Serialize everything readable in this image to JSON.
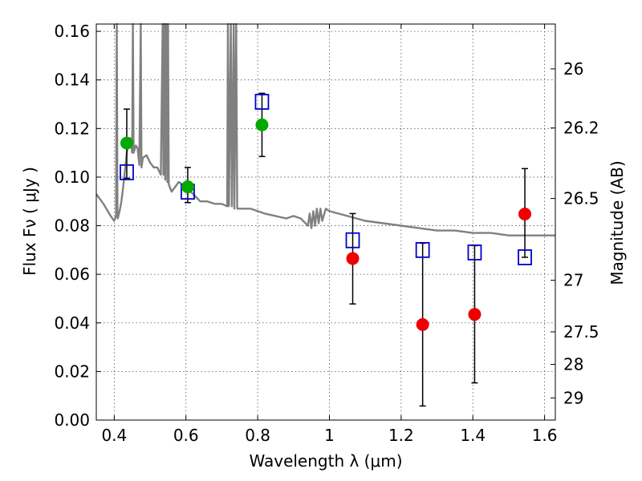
{
  "chart_data": {
    "type": "scatter",
    "xlabel": "Wavelength  λ (μm)",
    "ylabel": "Flux  Fν  ( μJy )",
    "ylabel_right": "Magnitude (AB)",
    "xlim": [
      0.35,
      1.63
    ],
    "ylim": [
      0.0,
      0.163
    ],
    "x_ticks": [
      0.4,
      0.6,
      0.8,
      1.0,
      1.2,
      1.4,
      1.6
    ],
    "x_tick_labels": [
      "0.4",
      "0.6",
      "0.8",
      "1",
      "1.2",
      "1.4",
      "1.6"
    ],
    "y_ticks": [
      0.0,
      0.02,
      0.04,
      0.06,
      0.08,
      0.1,
      0.12,
      0.14,
      0.16
    ],
    "y_tick_labels": [
      "0.00",
      "0.02",
      "0.04",
      "0.06",
      "0.08",
      "0.10",
      "0.12",
      "0.14",
      "0.16"
    ],
    "right_ticks": [
      {
        "label": "26",
        "mag": 26.0
      },
      {
        "label": "26.2",
        "mag": 26.2
      },
      {
        "label": "26.5",
        "mag": 26.5
      },
      {
        "label": "27",
        "mag": 27.0
      },
      {
        "label": "27.5",
        "mag": 27.5
      },
      {
        "label": "28",
        "mag": 28.0
      },
      {
        "label": "29",
        "mag": 29.0
      }
    ],
    "grid": true,
    "series": [
      {
        "kind": "line",
        "color": "#808080",
        "points": [
          [
            0.35,
            0.093
          ],
          [
            0.37,
            0.089
          ],
          [
            0.39,
            0.084
          ],
          [
            0.4,
            0.082
          ],
          [
            0.405,
            0.084
          ],
          [
            0.407,
            0.165
          ],
          [
            0.409,
            0.084
          ],
          [
            0.41,
            0.083
          ],
          [
            0.415,
            0.086
          ],
          [
            0.42,
            0.09
          ],
          [
            0.425,
            0.096
          ],
          [
            0.43,
            0.103
          ],
          [
            0.435,
            0.11
          ],
          [
            0.44,
            0.115
          ],
          [
            0.445,
            0.116
          ],
          [
            0.45,
            0.11
          ],
          [
            0.452,
            0.165
          ],
          [
            0.454,
            0.11
          ],
          [
            0.46,
            0.113
          ],
          [
            0.465,
            0.112
          ],
          [
            0.47,
            0.105
          ],
          [
            0.474,
            0.165
          ],
          [
            0.476,
            0.104
          ],
          [
            0.48,
            0.108
          ],
          [
            0.49,
            0.109
          ],
          [
            0.5,
            0.106
          ],
          [
            0.51,
            0.104
          ],
          [
            0.52,
            0.104
          ],
          [
            0.53,
            0.101
          ],
          [
            0.535,
            0.165
          ],
          [
            0.537,
            0.101
          ],
          [
            0.54,
            0.165
          ],
          [
            0.542,
            0.099
          ],
          [
            0.545,
            0.165
          ],
          [
            0.548,
            0.098
          ],
          [
            0.55,
            0.165
          ],
          [
            0.552,
            0.097
          ],
          [
            0.56,
            0.094
          ],
          [
            0.58,
            0.098
          ],
          [
            0.6,
            0.096
          ],
          [
            0.62,
            0.093
          ],
          [
            0.64,
            0.09
          ],
          [
            0.66,
            0.09
          ],
          [
            0.68,
            0.089
          ],
          [
            0.7,
            0.089
          ],
          [
            0.715,
            0.088
          ],
          [
            0.717,
            0.165
          ],
          [
            0.72,
            0.088
          ],
          [
            0.725,
            0.165
          ],
          [
            0.728,
            0.088
          ],
          [
            0.733,
            0.165
          ],
          [
            0.735,
            0.087
          ],
          [
            0.74,
            0.165
          ],
          [
            0.743,
            0.087
          ],
          [
            0.75,
            0.087
          ],
          [
            0.78,
            0.087
          ],
          [
            0.8,
            0.086
          ],
          [
            0.82,
            0.085
          ],
          [
            0.85,
            0.084
          ],
          [
            0.88,
            0.083
          ],
          [
            0.9,
            0.084
          ],
          [
            0.92,
            0.083
          ],
          [
            0.94,
            0.08
          ],
          [
            0.945,
            0.085
          ],
          [
            0.95,
            0.079
          ],
          [
            0.955,
            0.086
          ],
          [
            0.96,
            0.08
          ],
          [
            0.965,
            0.087
          ],
          [
            0.97,
            0.081
          ],
          [
            0.975,
            0.087
          ],
          [
            0.98,
            0.082
          ],
          [
            0.99,
            0.087
          ],
          [
            1.0,
            0.086
          ],
          [
            1.05,
            0.084
          ],
          [
            1.1,
            0.082
          ],
          [
            1.15,
            0.081
          ],
          [
            1.2,
            0.08
          ],
          [
            1.25,
            0.079
          ],
          [
            1.3,
            0.078
          ],
          [
            1.35,
            0.078
          ],
          [
            1.4,
            0.077
          ],
          [
            1.45,
            0.077
          ],
          [
            1.5,
            0.076
          ],
          [
            1.55,
            0.076
          ],
          [
            1.6,
            0.076
          ],
          [
            1.63,
            0.076
          ]
        ]
      },
      {
        "kind": "markers-open-square",
        "color": "#0000cc",
        "x": [
          0.435,
          0.605,
          0.812,
          1.065,
          1.26,
          1.405,
          1.545
        ],
        "y": [
          0.102,
          0.094,
          0.131,
          0.074,
          0.07,
          0.069,
          0.067
        ]
      },
      {
        "kind": "markers-filled-circle",
        "points": [
          {
            "x": 0.435,
            "y": 0.114,
            "yerr_low": 0.0995,
            "yerr_high": 0.128,
            "color": "#00aa00"
          },
          {
            "x": 0.605,
            "y": 0.096,
            "yerr_low": 0.0895,
            "yerr_high": 0.104,
            "color": "#00aa00"
          },
          {
            "x": 0.812,
            "y": 0.1215,
            "yerr_low": 0.1085,
            "yerr_high": 0.1345,
            "color": "#00aa00"
          },
          {
            "x": 1.065,
            "y": 0.0665,
            "yerr_low": 0.0478,
            "yerr_high": 0.085,
            "color": "#ee0000"
          },
          {
            "x": 1.26,
            "y": 0.0393,
            "yerr_low": 0.0058,
            "yerr_high": 0.0728,
            "color": "#ee0000"
          },
          {
            "x": 1.405,
            "y": 0.0435,
            "yerr_low": 0.0153,
            "yerr_high": 0.0718,
            "color": "#ee0000"
          },
          {
            "x": 1.545,
            "y": 0.0848,
            "yerr_low": 0.067,
            "yerr_high": 0.1035,
            "color": "#ee0000"
          }
        ]
      }
    ]
  }
}
